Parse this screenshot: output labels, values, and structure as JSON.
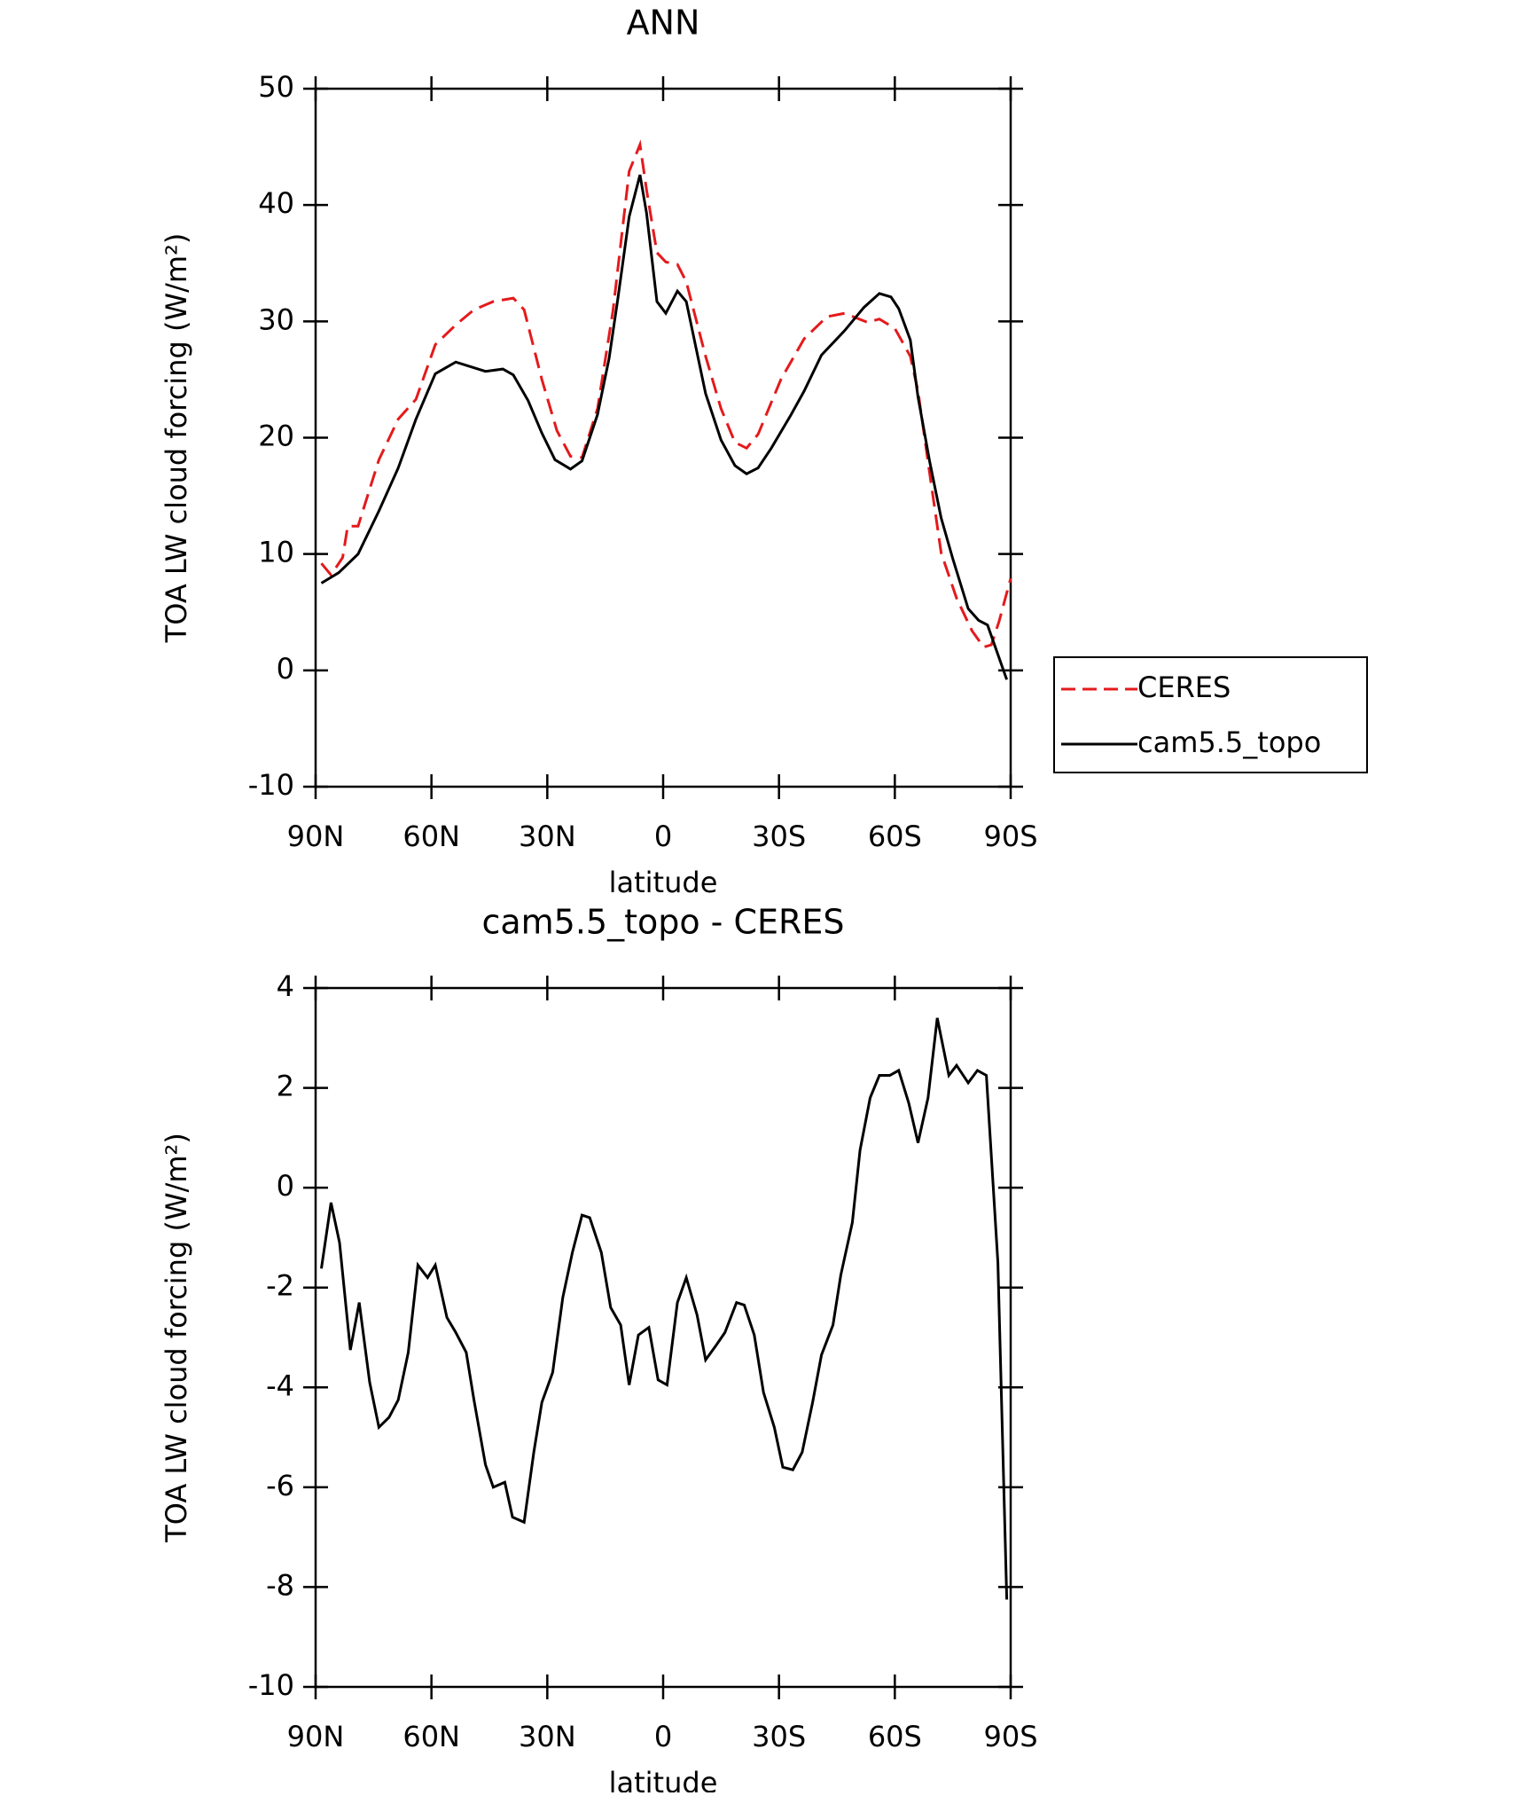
{
  "chart_data": [
    {
      "type": "line",
      "title": "ANN",
      "xlabel": "latitude",
      "ylabel": "TOA LW cloud forcing (W/m²)",
      "xlim": [
        90,
        -90
      ],
      "xticks": [
        {
          "value": 90,
          "label": "90N"
        },
        {
          "value": 60,
          "label": "60N"
        },
        {
          "value": 30,
          "label": "30N"
        },
        0,
        {
          "value": -30,
          "label": "30S"
        },
        {
          "value": -60,
          "label": "60S"
        },
        {
          "value": -90,
          "label": "90S"
        }
      ],
      "ylim": [
        -10,
        50
      ],
      "yticks": [
        -10,
        0,
        10,
        20,
        30,
        40,
        50
      ],
      "legend": "right",
      "series": [
        {
          "name": "CERES",
          "color": "#e41a1c",
          "dashed": true,
          "x": [
            88.5,
            86,
            83,
            81.7,
            79,
            73.6,
            68.6,
            64,
            59,
            53.7,
            49,
            44,
            38.8,
            36,
            31.4,
            27.5,
            24,
            21,
            17,
            13,
            8.8,
            6,
            4.3,
            1.6,
            -0.7,
            -3.7,
            -6,
            -11,
            -15,
            -18.6,
            -21.6,
            -24.6,
            -30.5,
            -36.5,
            -42.4,
            -47,
            -53,
            -56,
            -60,
            -64,
            -66,
            -69,
            -72,
            -76,
            -80,
            -83,
            -85,
            -87,
            -90
          ],
          "values": [
            9.2,
            8.2,
            9.7,
            12.4,
            12.4,
            18.1,
            21.6,
            23.3,
            28,
            29.7,
            31,
            31.7,
            32,
            31,
            25,
            20.6,
            18.4,
            18.3,
            22.5,
            30.9,
            42.9,
            45.2,
            41.3,
            35.9,
            35.1,
            34.9,
            33.4,
            27,
            22.5,
            19.6,
            19.1,
            20.3,
            25,
            28.5,
            30.4,
            30.7,
            29.9,
            30.2,
            29.4,
            27,
            24,
            17,
            10.1,
            6.2,
            3.4,
            2,
            2.2,
            4.2,
            7.9
          ]
        },
        {
          "name": "cam5.5_topo",
          "color": "#000000",
          "dashed": false,
          "x": [
            88.5,
            84,
            79,
            73.6,
            68.6,
            64,
            59,
            53.7,
            46,
            41.5,
            38.8,
            35,
            31.4,
            28,
            24,
            21,
            17,
            14,
            11.7,
            8.8,
            6,
            4.3,
            1.6,
            -0.7,
            -3.7,
            -6,
            -11,
            -15,
            -18.6,
            -21.6,
            -24.6,
            -28,
            -33,
            -36.5,
            -41,
            -47,
            -52,
            -56,
            -59,
            -61,
            -64,
            -66,
            -69,
            -72,
            -75,
            -79,
            -81.7,
            -84,
            -89
          ],
          "values": [
            7.5,
            8.4,
            10,
            13.7,
            17.4,
            21.6,
            25.5,
            26.5,
            25.7,
            25.9,
            25.4,
            23.2,
            20.4,
            18.1,
            17.3,
            18,
            22,
            26.8,
            32,
            39,
            42.6,
            39.3,
            31.7,
            30.7,
            32.6,
            31.7,
            23.8,
            19.8,
            17.6,
            16.9,
            17.4,
            19.1,
            21.9,
            24,
            27.1,
            29.2,
            31.2,
            32.4,
            32.1,
            31.1,
            28.4,
            23.5,
            18,
            13.1,
            9.6,
            5.3,
            4.3,
            3.9,
            -0.8
          ]
        }
      ]
    },
    {
      "type": "line",
      "title": "cam5.5_topo - CERES",
      "xlabel": "latitude",
      "ylabel": "TOA LW cloud forcing (W/m²)",
      "xlim": [
        90,
        -90
      ],
      "xticks": [
        {
          "value": 90,
          "label": "90N"
        },
        {
          "value": 60,
          "label": "60N"
        },
        {
          "value": 30,
          "label": "30N"
        },
        0,
        {
          "value": -30,
          "label": "30S"
        },
        {
          "value": -60,
          "label": "60S"
        },
        {
          "value": -90,
          "label": "90S"
        }
      ],
      "ylim": [
        -10,
        4
      ],
      "yticks": [
        -10,
        -8,
        -6,
        -4,
        -2,
        0,
        2,
        4
      ],
      "series": [
        {
          "color": "#000000",
          "dashed": false,
          "x": [
            88.5,
            86,
            83.8,
            81,
            78.7,
            76,
            73.6,
            71,
            68.6,
            66,
            63.5,
            61,
            59,
            56,
            53.7,
            51,
            49,
            46,
            44,
            41,
            39,
            36,
            33.5,
            31.4,
            28.6,
            26,
            23.5,
            21,
            19,
            16,
            13.6,
            11,
            8.8,
            6.4,
            3.7,
            1.3,
            -1,
            -3.7,
            -6,
            -8.8,
            -11,
            -13.8,
            -16,
            -19,
            -21,
            -23.6,
            -26,
            -28.8,
            -31,
            -33.6,
            -36,
            -38.7,
            -41,
            -44,
            -46,
            -49,
            -51,
            -53.6,
            -56,
            -58.7,
            -61,
            -63.6,
            -66,
            -68.6,
            -71,
            -74,
            -76,
            -79,
            -81.4,
            -83.7,
            -86.7,
            -89
          ],
          "values": [
            -1.62,
            -0.3,
            -1.1,
            -3.25,
            -2.3,
            -3.9,
            -4.8,
            -4.6,
            -4.25,
            -3.3,
            -1.55,
            -1.8,
            -1.55,
            -2.6,
            -2.9,
            -3.3,
            -4.25,
            -5.55,
            -6,
            -5.9,
            -6.6,
            -6.7,
            -5.3,
            -4.3,
            -3.7,
            -2.2,
            -1.3,
            -0.55,
            -0.6,
            -1.3,
            -2.4,
            -2.75,
            -3.95,
            -2.95,
            -2.8,
            -3.85,
            -3.95,
            -2.3,
            -1.8,
            -2.55,
            -3.45,
            -3.15,
            -2.9,
            -2.3,
            -2.35,
            -2.95,
            -4.1,
            -4.8,
            -5.6,
            -5.65,
            -5.3,
            -4.3,
            -3.35,
            -2.75,
            -1.75,
            -0.7,
            0.75,
            1.8,
            2.25,
            2.25,
            2.35,
            1.7,
            0.9,
            1.8,
            3.4,
            2.25,
            2.45,
            2.1,
            2.35,
            2.25,
            -1.5,
            -8.25
          ]
        }
      ]
    }
  ]
}
